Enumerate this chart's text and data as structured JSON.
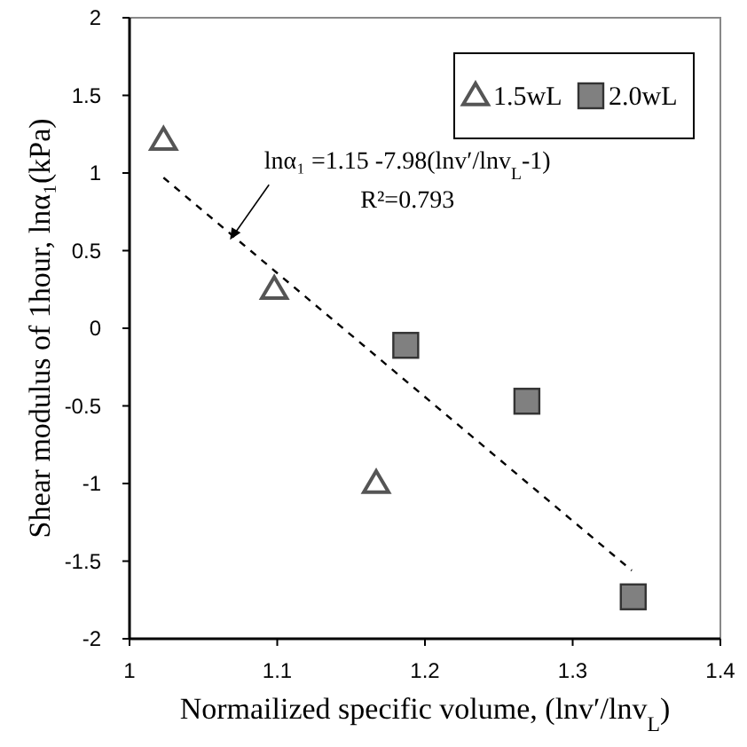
{
  "chart_data": {
    "type": "scatter",
    "xlabel": "Normailized specific volume, (lnv′/lnv$_{L}$)",
    "ylabel": "Shear modulus of 1hour, lnα₁(kPa)",
    "xlim": [
      1,
      1.4
    ],
    "xticks": [
      1,
      1.1,
      1.2,
      1.3,
      1.4
    ],
    "ylim": [
      -2,
      2
    ],
    "yticks": [
      -2,
      -1.5,
      -1,
      -0.5,
      0,
      0.5,
      1,
      1.5,
      2
    ],
    "grid": false,
    "legend": "top right",
    "series": [
      {
        "name": "1.5wL",
        "marker": "triangle",
        "color": "#ffffff",
        "x": [
          1.023,
          1.098,
          1.167
        ],
        "values": [
          1.21,
          0.25,
          -1.0
        ]
      },
      {
        "name": "2.0wL",
        "marker": "square",
        "color": "#808080",
        "x": [
          1.187,
          1.269,
          1.341
        ],
        "values": [
          -0.11,
          -0.47,
          -1.73
        ]
      },
      {
        "type": "line",
        "marker": "none",
        "line_style": "dashed",
        "color": "#000000",
        "x": [
          1.023,
          1.34
        ],
        "values": [
          0.97,
          -1.56
        ]
      }
    ],
    "annotations": [
      {
        "text": "lnα₁ =1.15 -7.98(lnv′/lnv$_{L}$-1)",
        "x": 1.068,
        "y": 0.57
      },
      "R²=0.793"
    ]
  }
}
